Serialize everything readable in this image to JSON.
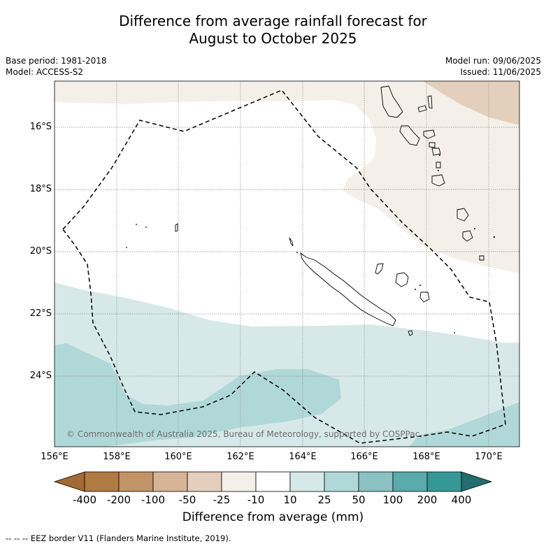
{
  "title": {
    "line1": "Difference from average rainfall forecast for",
    "line2": "August to October 2025"
  },
  "meta_left": {
    "base_period": "Base period: 1981-2018",
    "model": "Model: ACCESS-S2"
  },
  "meta_right": {
    "model_run": "Model run: 09/06/2025",
    "issued": "Issued: 11/06/2025"
  },
  "lat_labels": [
    "16°S",
    "18°S",
    "20°S",
    "22°S",
    "24°S"
  ],
  "lon_labels": [
    "156°E",
    "158°E",
    "160°E",
    "162°E",
    "164°E",
    "166°E",
    "168°E",
    "170°E"
  ],
  "copyright": "© Commonwealth of Australia 2025, Bureau of Meteorology, supported by COSPPac",
  "colorbar": {
    "tick_labels": [
      "-400",
      "-200",
      "-100",
      "-50",
      "-25",
      "-10",
      "10",
      "25",
      "50",
      "100",
      "200",
      "400"
    ],
    "title": "Difference from average (mm)",
    "colors": [
      "#a36a35",
      "#b07a43",
      "#c29467",
      "#d6b497",
      "#e4cfbc",
      "#f4efe9",
      "#ffffff",
      "#d6e9e8",
      "#b1d8d8",
      "#8bc1c2",
      "#5aabab",
      "#359896",
      "#226e6e"
    ]
  },
  "footer": "-- -- -- EEZ border V11 (Flanders Marine Institute, 2019)."
}
